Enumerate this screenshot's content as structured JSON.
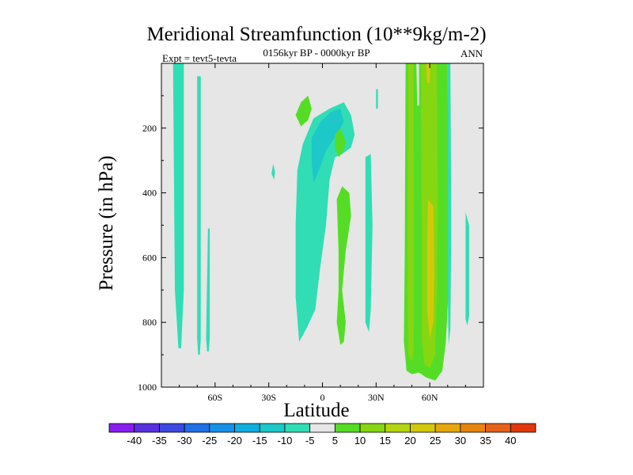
{
  "chart_data": {
    "type": "heatmap",
    "title": "Meridional Streamfunction (10**9kg/m-2)",
    "subtitle": "0156kyr BP - 0000kyr BP",
    "experiment_label": "Expt = tevt5-tevta",
    "season": "ANN",
    "xlabel": "Latitude",
    "ylabel": "Pressure (in hPa)",
    "xlim": [
      -90,
      90
    ],
    "ylim": [
      1000,
      0
    ],
    "x_ticks": [
      {
        "value": -60,
        "label": "60S"
      },
      {
        "value": -30,
        "label": "30S"
      },
      {
        "value": 0,
        "label": "0"
      },
      {
        "value": 30,
        "label": "30N"
      },
      {
        "value": 60,
        "label": "60N"
      }
    ],
    "y_ticks": [
      {
        "value": 200,
        "label": "200"
      },
      {
        "value": 400,
        "label": "400"
      },
      {
        "value": 600,
        "label": "600"
      },
      {
        "value": 800,
        "label": "800"
      },
      {
        "value": 1000,
        "label": "1000"
      }
    ],
    "background_color": "#e6e6e6",
    "colorbar": {
      "levels": [
        "-40",
        "-35",
        "-30",
        "-25",
        "-20",
        "-15",
        "-10",
        "-5",
        "5",
        "10",
        "15",
        "20",
        "25",
        "30",
        "35",
        "40"
      ],
      "colors": [
        "#8a1cf0",
        "#5a2fe0",
        "#3b49e0",
        "#1f6fe6",
        "#1591e8",
        "#10aee0",
        "#1cc8c8",
        "#30ddb5",
        "#e6e6e6",
        "#55dd26",
        "#86d611",
        "#b3d60e",
        "#d3c90c",
        "#e6a70e",
        "#e8850f",
        "#e6621a",
        "#e0380c"
      ]
    },
    "regions": [
      {
        "name": "band-70s",
        "value": -7,
        "lat": [
          [
            -83.5,
            0
          ],
          [
            -77.5,
            0
          ],
          [
            -77.5,
            700
          ],
          [
            -79,
            880
          ],
          [
            -80.5,
            880
          ],
          [
            -82.5,
            700
          ]
        ]
      },
      {
        "name": "band-64s-a",
        "value": -7,
        "lat": [
          [
            -70,
            40
          ],
          [
            -68,
            40
          ],
          [
            -68,
            850
          ],
          [
            -68.5,
            900
          ],
          [
            -69.5,
            900
          ],
          [
            -70,
            850
          ]
        ]
      },
      {
        "name": "band-64s-b",
        "value": -7,
        "lat": [
          [
            -64,
            510
          ],
          [
            -63,
            510
          ],
          [
            -63,
            850
          ],
          [
            -63.5,
            890
          ],
          [
            -64.5,
            890
          ],
          [
            -65,
            850
          ]
        ]
      },
      {
        "name": "spot-28s",
        "value": -7,
        "lat": [
          [
            -27.5,
            310
          ],
          [
            -26.5,
            335
          ],
          [
            -27,
            360
          ],
          [
            -28.5,
            340
          ]
        ]
      },
      {
        "name": "tropical-cell-nh",
        "value": -7,
        "lat": [
          [
            -14,
            330
          ],
          [
            -11,
            250
          ],
          [
            -5,
            170
          ],
          [
            4,
            140
          ],
          [
            12,
            120
          ],
          [
            16,
            160
          ],
          [
            18,
            220
          ],
          [
            16,
            260
          ],
          [
            11,
            280
          ],
          [
            7,
            290
          ],
          [
            4,
            360
          ],
          [
            2,
            500
          ],
          [
            -1,
            620
          ],
          [
            -4,
            760
          ],
          [
            -9,
            820
          ],
          [
            -13,
            860
          ],
          [
            -15,
            720
          ],
          [
            -15,
            500
          ]
        ]
      },
      {
        "name": "tropical-core",
        "value": -12,
        "lat": [
          [
            -6,
            230
          ],
          [
            -1,
            180
          ],
          [
            5,
            150
          ],
          [
            10,
            140
          ],
          [
            12,
            180
          ],
          [
            8,
            220
          ],
          [
            2,
            270
          ],
          [
            -2,
            330
          ],
          [
            -5,
            370
          ],
          [
            -6,
            300
          ]
        ]
      },
      {
        "name": "lobe-10s",
        "value": 7,
        "lat": [
          [
            -15,
            160
          ],
          [
            -12,
            120
          ],
          [
            -8,
            100
          ],
          [
            -6,
            140
          ],
          [
            -8,
            175
          ],
          [
            -12,
            195
          ]
        ]
      },
      {
        "name": "upper-10n",
        "value": 7,
        "lat": [
          [
            7,
            220
          ],
          [
            10,
            200
          ],
          [
            13,
            240
          ],
          [
            12,
            270
          ],
          [
            9,
            290
          ],
          [
            7,
            260
          ]
        ]
      },
      {
        "name": "green-10n",
        "value": 7,
        "lat": [
          [
            8,
            420
          ],
          [
            11,
            380
          ],
          [
            15,
            400
          ],
          [
            16,
            470
          ],
          [
            13,
            580
          ],
          [
            11,
            700
          ],
          [
            13,
            800
          ],
          [
            12,
            860
          ],
          [
            10,
            870
          ],
          [
            8,
            800
          ],
          [
            9,
            700
          ],
          [
            9,
            580
          ]
        ]
      },
      {
        "name": "band-25n",
        "value": -7,
        "lat": [
          [
            24,
            290
          ],
          [
            27,
            280
          ],
          [
            28,
            500
          ],
          [
            27,
            760
          ],
          [
            26,
            830
          ],
          [
            24,
            800
          ],
          [
            24,
            600
          ]
        ]
      },
      {
        "name": "band-30n",
        "value": -7,
        "lat": [
          [
            30,
            80
          ],
          [
            31,
            80
          ],
          [
            31,
            140
          ],
          [
            30,
            140
          ]
        ]
      },
      {
        "name": "nh-jet-green",
        "value": 9,
        "lat": [
          [
            46.5,
            0
          ],
          [
            70,
            0
          ],
          [
            70.5,
            700
          ],
          [
            69,
            860
          ],
          [
            67,
            950
          ],
          [
            63,
            980
          ],
          [
            58,
            970
          ],
          [
            54,
            955
          ],
          [
            50,
            960
          ],
          [
            47,
            950
          ],
          [
            45.5,
            860
          ],
          [
            46,
            600
          ]
        ]
      },
      {
        "name": "nh-jet-yellow-left",
        "value": 14,
        "lat": [
          [
            48,
            0
          ],
          [
            51,
            0
          ],
          [
            51,
            880
          ],
          [
            50,
            920
          ],
          [
            48,
            900
          ],
          [
            47.5,
            700
          ]
        ]
      },
      {
        "name": "nh-jet-yellow-right",
        "value": 14,
        "lat": [
          [
            55,
            0
          ],
          [
            64,
            0
          ],
          [
            64.5,
            450
          ],
          [
            64,
            700
          ],
          [
            63,
            900
          ],
          [
            60,
            940
          ],
          [
            57,
            930
          ],
          [
            55.5,
            850
          ],
          [
            55.5,
            500
          ]
        ]
      },
      {
        "name": "nh-jet-core",
        "value": 20,
        "lat": [
          [
            59,
            420
          ],
          [
            62,
            440
          ],
          [
            62.5,
            650
          ],
          [
            62,
            800
          ],
          [
            60,
            850
          ],
          [
            58.5,
            760
          ],
          [
            58.5,
            560
          ]
        ]
      },
      {
        "name": "nh-jet-core-top",
        "value": 20,
        "lat": [
          [
            58,
            0
          ],
          [
            60,
            0
          ],
          [
            60,
            60
          ],
          [
            58.5,
            60
          ]
        ]
      },
      {
        "name": "gap-59n-top",
        "value": 0,
        "lat": [
          [
            52.5,
            0
          ],
          [
            54,
            0
          ],
          [
            54,
            130
          ],
          [
            53,
            130
          ]
        ]
      },
      {
        "name": "band-80n",
        "value": -7,
        "lat": [
          [
            80,
            460
          ],
          [
            82,
            500
          ],
          [
            82,
            780
          ],
          [
            81,
            810
          ],
          [
            80,
            790
          ]
        ]
      },
      {
        "name": "band-72n",
        "value": -7,
        "lat": [
          [
            70,
            0
          ],
          [
            71.5,
            0
          ],
          [
            72,
            500
          ],
          [
            71.5,
            820
          ],
          [
            70.5,
            870
          ],
          [
            70,
            700
          ]
        ]
      }
    ]
  }
}
